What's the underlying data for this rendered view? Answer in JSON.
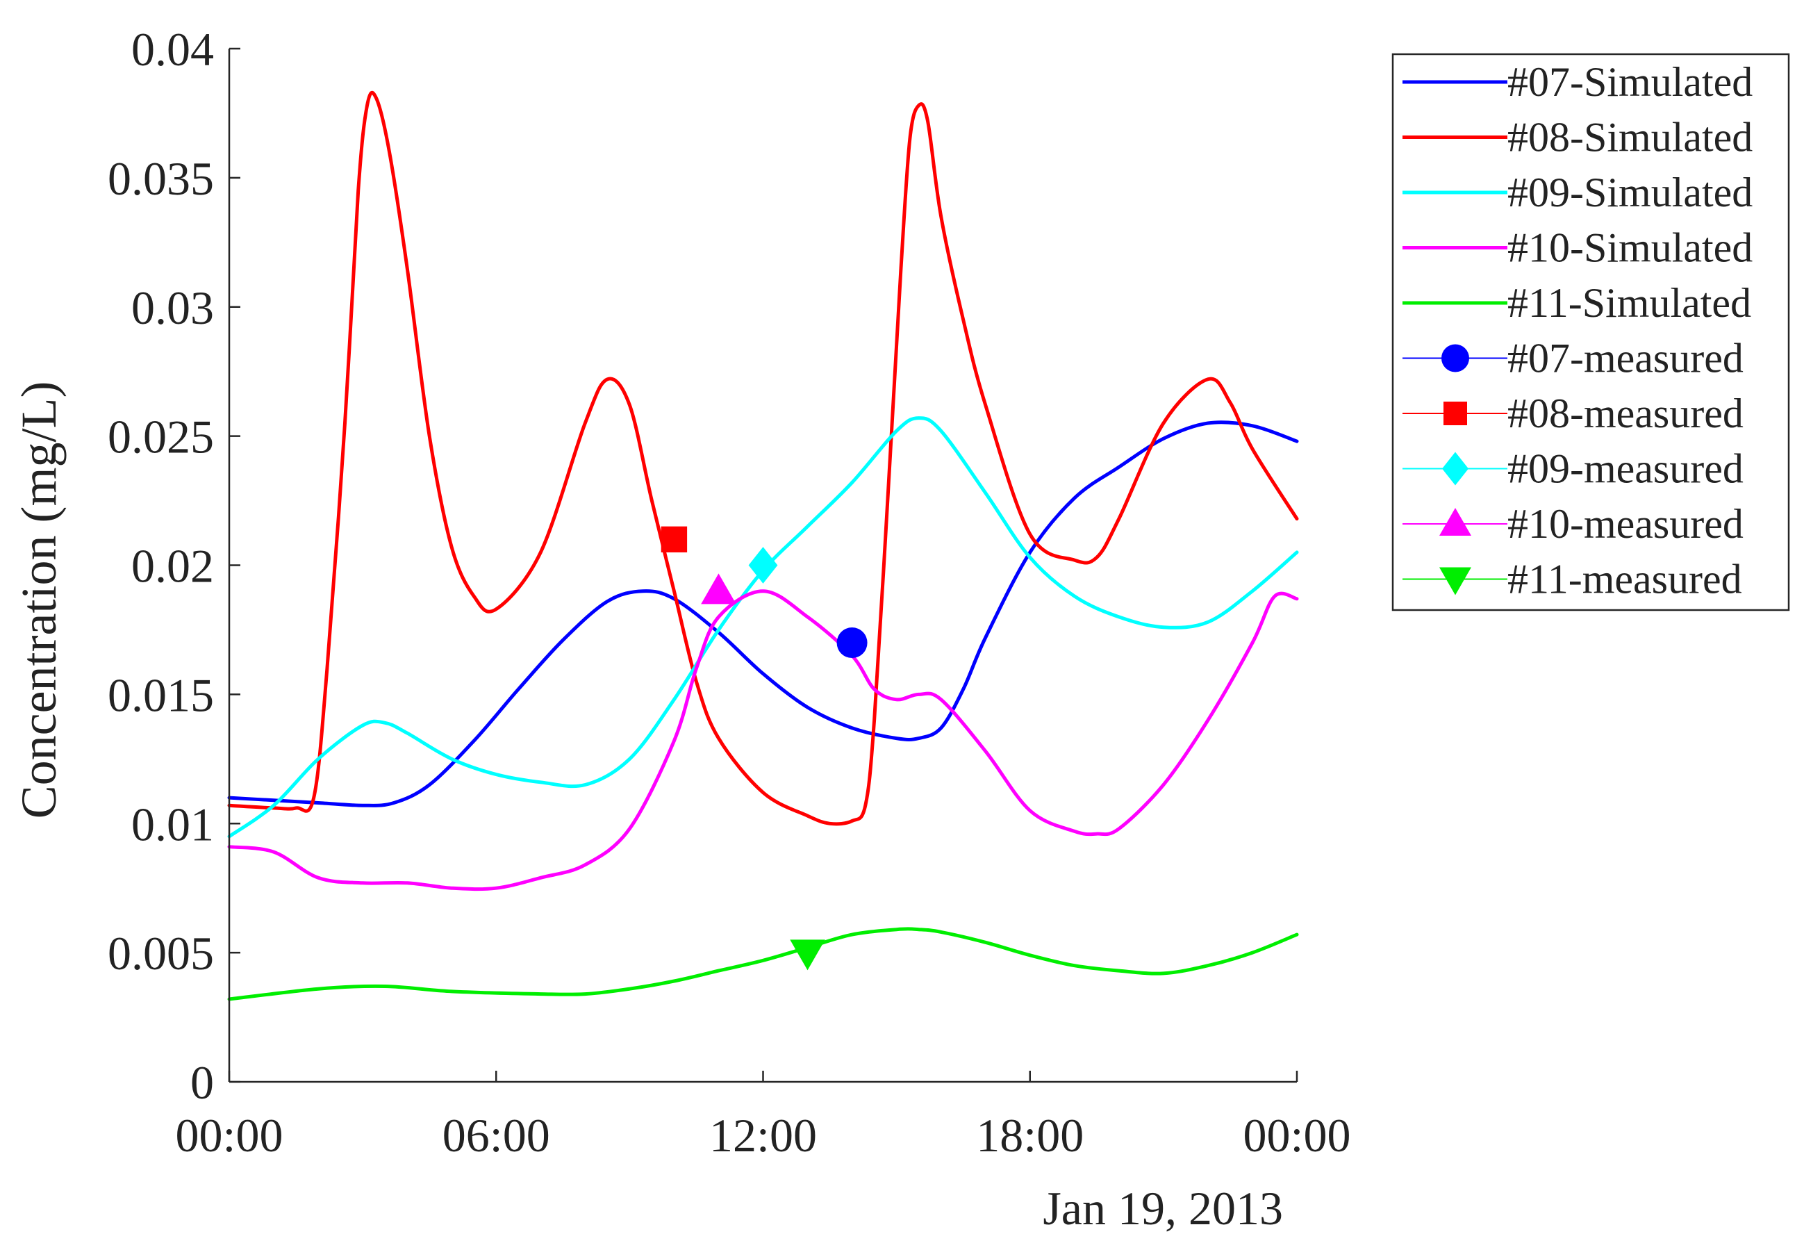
{
  "chart_data": {
    "type": "line",
    "xlabel": "",
    "ylabel": "Concentration (mg/L)",
    "date_label": "Jan 19, 2013",
    "x_unit": "hours",
    "xlim": [
      0,
      24
    ],
    "ylim": [
      0,
      0.04
    ],
    "x_ticks": [
      0,
      6,
      12,
      18,
      24
    ],
    "x_tick_labels": [
      "00:00",
      "06:00",
      "12:00",
      "18:00",
      "00:00"
    ],
    "y_ticks": [
      0,
      0.005,
      0.01,
      0.015,
      0.02,
      0.025,
      0.03,
      0.035,
      0.04
    ],
    "y_tick_labels": [
      "0",
      "0.005",
      "0.01",
      "0.015",
      "0.02",
      "0.025",
      "0.03",
      "0.035",
      "0.04"
    ],
    "grid": false,
    "legend_position": "outside-top-right",
    "series": [
      {
        "name": "#07-Simulated",
        "color": "#0000ff",
        "x": [
          0,
          1,
          2,
          3,
          3.7,
          4.5,
          5.5,
          6.5,
          7.5,
          8.5,
          9.3,
          10,
          11,
          12,
          13,
          14,
          15,
          15.5,
          16,
          16.5,
          17,
          18,
          19,
          20,
          21,
          22,
          23,
          24
        ],
        "y": [
          0.011,
          0.0109,
          0.0108,
          0.0107,
          0.0108,
          0.0115,
          0.0132,
          0.0152,
          0.0171,
          0.0186,
          0.019,
          0.0187,
          0.0174,
          0.0158,
          0.0145,
          0.0137,
          0.0133,
          0.0133,
          0.0137,
          0.0152,
          0.0172,
          0.0205,
          0.0226,
          0.0238,
          0.0249,
          0.0255,
          0.0254,
          0.0248
        ]
      },
      {
        "name": "#08-Simulated",
        "color": "#ff0000",
        "x": [
          0,
          1,
          1.5,
          1.9,
          2.2,
          2.6,
          2.9,
          3.1,
          3.3,
          3.6,
          4,
          4.5,
          5,
          5.5,
          6,
          7,
          8,
          8.5,
          9,
          9.5,
          10,
          10.5,
          11,
          12,
          13,
          13.5,
          14,
          14.3,
          14.5,
          14.8,
          15.1,
          15.3,
          15.5,
          15.7,
          16,
          16.5,
          17,
          18,
          19,
          19.5,
          20,
          21,
          22,
          22.5,
          23,
          24
        ],
        "y": [
          0.0107,
          0.0106,
          0.0106,
          0.011,
          0.016,
          0.0255,
          0.0345,
          0.0378,
          0.0381,
          0.036,
          0.0315,
          0.025,
          0.0207,
          0.0188,
          0.0183,
          0.0205,
          0.0255,
          0.0272,
          0.0262,
          0.0225,
          0.019,
          0.0155,
          0.0133,
          0.0112,
          0.0103,
          0.01,
          0.0101,
          0.0107,
          0.014,
          0.0225,
          0.0315,
          0.0365,
          0.0378,
          0.0372,
          0.0335,
          0.0295,
          0.0262,
          0.0212,
          0.0202,
          0.0203,
          0.0218,
          0.0255,
          0.0272,
          0.0263,
          0.0245,
          0.0218
        ]
      },
      {
        "name": "#09-Simulated",
        "color": "#00ffff",
        "x": [
          0,
          1,
          2,
          3,
          3.5,
          4,
          5,
          6,
          7,
          8,
          9,
          10,
          11,
          12,
          13,
          14,
          15,
          15.5,
          16,
          17,
          18,
          19,
          20,
          21,
          22,
          23,
          24
        ],
        "y": [
          0.0095,
          0.0107,
          0.0125,
          0.0138,
          0.0139,
          0.0135,
          0.0125,
          0.0119,
          0.0116,
          0.0115,
          0.0125,
          0.0148,
          0.0175,
          0.0198,
          0.0215,
          0.0232,
          0.0252,
          0.0257,
          0.0252,
          0.0228,
          0.0203,
          0.0188,
          0.018,
          0.0176,
          0.0178,
          0.019,
          0.0205
        ]
      },
      {
        "name": "#10-Simulated",
        "color": "#ff00ff",
        "x": [
          0,
          1,
          2,
          3,
          4,
          5,
          6,
          7,
          8,
          9,
          10,
          10.5,
          11,
          12,
          13,
          14,
          14.5,
          15,
          15.5,
          16,
          17,
          18,
          19,
          19.5,
          20,
          21,
          22,
          23,
          23.5,
          24
        ],
        "y": [
          0.0091,
          0.0089,
          0.0079,
          0.0077,
          0.0077,
          0.0075,
          0.0075,
          0.0079,
          0.0084,
          0.0098,
          0.0132,
          0.016,
          0.018,
          0.019,
          0.018,
          0.0165,
          0.0152,
          0.0148,
          0.015,
          0.0148,
          0.0128,
          0.0105,
          0.0097,
          0.0096,
          0.0098,
          0.0115,
          0.014,
          0.017,
          0.0188,
          0.0187
        ]
      },
      {
        "name": "#11-Simulated",
        "color": "#00ee00",
        "x": [
          0,
          2,
          3.5,
          5,
          7,
          8,
          9,
          10,
          11,
          12,
          13,
          14,
          15,
          15.5,
          16,
          17,
          18,
          19,
          20,
          21,
          22,
          23,
          24
        ],
        "y": [
          0.0032,
          0.0036,
          0.0037,
          0.0035,
          0.0034,
          0.0034,
          0.0036,
          0.0039,
          0.0043,
          0.0047,
          0.0052,
          0.0057,
          0.0059,
          0.0059,
          0.0058,
          0.0054,
          0.0049,
          0.0045,
          0.0043,
          0.0042,
          0.0045,
          0.005,
          0.0057
        ]
      }
    ],
    "measured": [
      {
        "name": "#07-measured",
        "color": "#0000ff",
        "marker": "circle",
        "x": 14,
        "y": 0.017
      },
      {
        "name": "#08-measured",
        "color": "#ff0000",
        "marker": "square",
        "x": 10,
        "y": 0.021
      },
      {
        "name": "#09-measured",
        "color": "#00ffff",
        "marker": "diamond",
        "x": 12,
        "y": 0.02
      },
      {
        "name": "#10-measured",
        "color": "#ff00ff",
        "marker": "triangle-up",
        "x": 11,
        "y": 0.019
      },
      {
        "name": "#11-measured",
        "color": "#00ee00",
        "marker": "triangle-down",
        "x": 13,
        "y": 0.005
      }
    ]
  }
}
